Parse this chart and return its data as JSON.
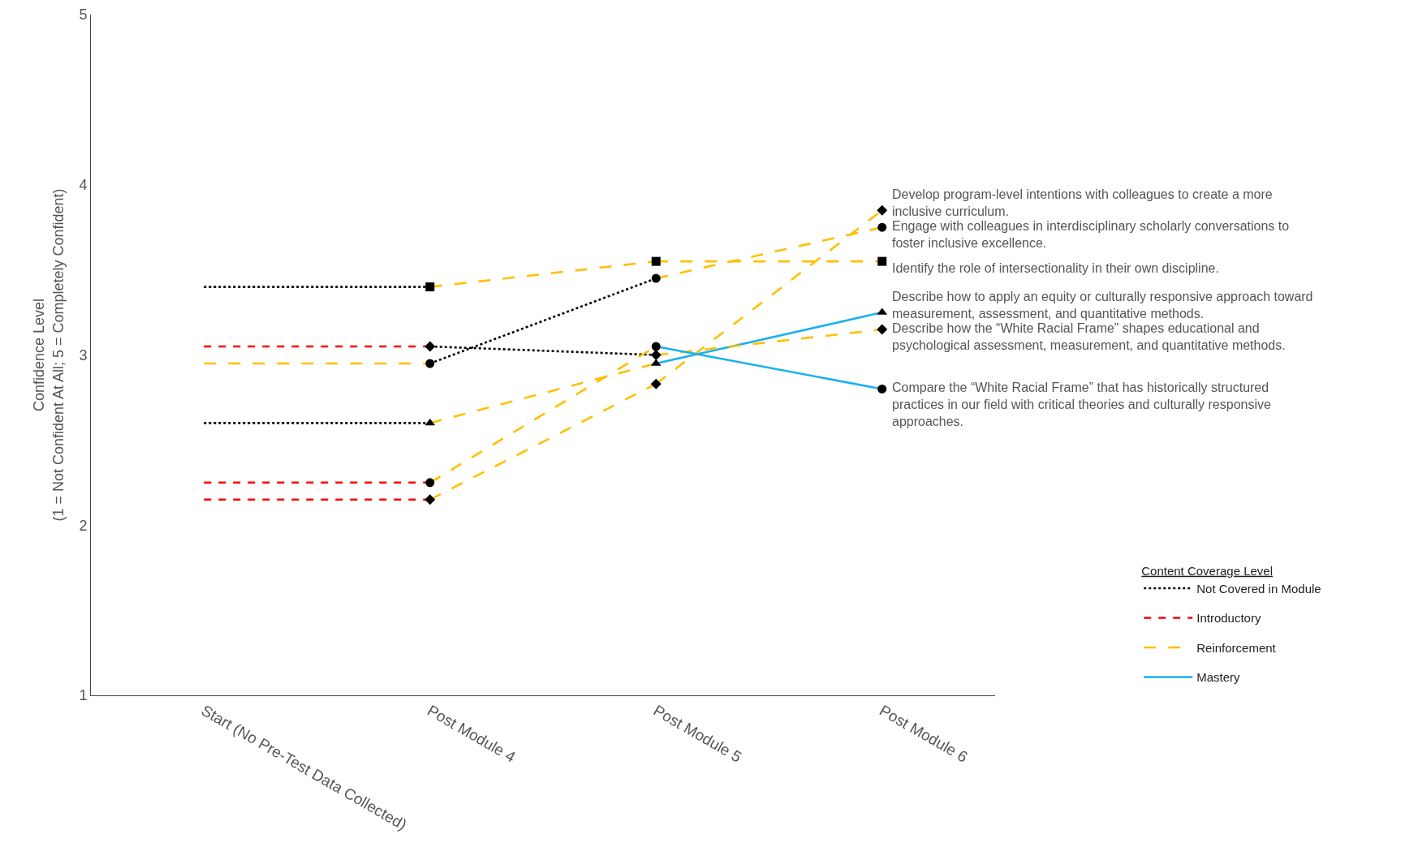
{
  "chart_data": {
    "type": "line",
    "ylabel": "Confidence Level\n(1 = Not Confident At All; 5 = Completely Confident)",
    "legend_title": "Content Coverage Level",
    "legend": "bottom right",
    "grid": false,
    "categories": [
      "Start (No Pre-Test Data Collected)",
      "Post Module 4",
      "Post Module 5",
      "Post Module 6"
    ],
    "ylim": [
      1,
      5
    ],
    "yticks": [
      1,
      2,
      3,
      4,
      5
    ],
    "series": [
      {
        "type": "line",
        "name": "Not Covered in Module",
        "color": "#000000",
        "line_style": "dotted",
        "x": [
          "Start (No Pre-Test Data Collected)",
          "Post Module 4"
        ],
        "values": [
          3.4,
          3.4
        ]
      },
      {
        "type": "line",
        "name": "Introductory",
        "color": "#ff0000",
        "line_style": "dashed",
        "x": [
          "Start (No Pre-Test Data Collected)",
          "Post Module 4"
        ],
        "values": [
          2.15,
          2.15
        ]
      },
      {
        "type": "line",
        "name": "Reinforcement",
        "color": "#ffc000",
        "line_style": "dashed",
        "x": [
          "Post Module 4",
          "Post Module 5"
        ],
        "values": [
          2.15,
          2.83
        ]
      },
      {
        "type": "line",
        "name": "Mastery",
        "color": "#1ab0ef",
        "line_style": "solid",
        "x": [
          "Post Module 5",
          "Post Module 6"
        ],
        "values": [
          2.95,
          3.25
        ]
      },
      {
        "type": "line",
        "color": "#ffc000",
        "line_style": "dashed",
        "x": [
          "Post Module 5",
          "Post Module 6"
        ],
        "values": [
          2.83,
          3.85
        ]
      },
      {
        "type": "line",
        "color": "#ffc000",
        "line_style": "dashed",
        "x": [
          "Start (No Pre-Test Data Collected)",
          "Post Module 4"
        ],
        "values": [
          2.95,
          2.95
        ]
      },
      {
        "type": "line",
        "color": "#000000",
        "line_style": "dotted",
        "x": [
          "Post Module 4",
          "Post Module 5"
        ],
        "values": [
          2.95,
          3.45
        ]
      },
      {
        "type": "line",
        "color": "#ffc000",
        "line_style": "dashed",
        "x": [
          "Post Module 5",
          "Post Module 6"
        ],
        "values": [
          3.45,
          3.75
        ]
      },
      {
        "type": "line",
        "color": "#ffc000",
        "line_style": "dashed",
        "x": [
          "Post Module 4",
          "Post Module 5"
        ],
        "values": [
          3.4,
          3.55
        ]
      },
      {
        "type": "line",
        "color": "#ffc000",
        "line_style": "dashed",
        "x": [
          "Post Module 5",
          "Post Module 6"
        ],
        "values": [
          3.55,
          3.55
        ]
      },
      {
        "type": "line",
        "color": "#000000",
        "line_style": "dotted",
        "x": [
          "Start (No Pre-Test Data Collected)",
          "Post Module 4"
        ],
        "values": [
          2.6,
          2.6
        ]
      },
      {
        "type": "line",
        "color": "#ffc000",
        "line_style": "dashed",
        "x": [
          "Post Module 4",
          "Post Module 5"
        ],
        "values": [
          2.6,
          2.95
        ]
      },
      {
        "type": "line",
        "color": "#ff0000",
        "line_style": "dashed",
        "x": [
          "Start (No Pre-Test Data Collected)",
          "Post Module 4"
        ],
        "values": [
          3.05,
          3.05
        ]
      },
      {
        "type": "line",
        "color": "#000000",
        "line_style": "dotted",
        "x": [
          "Post Module 4",
          "Post Module 5"
        ],
        "values": [
          3.05,
          3.0
        ]
      },
      {
        "type": "line",
        "color": "#ffc000",
        "line_style": "dashed",
        "x": [
          "Post Module 5",
          "Post Module 6"
        ],
        "values": [
          3.0,
          3.15
        ]
      },
      {
        "type": "line",
        "color": "#ff0000",
        "line_style": "dashed",
        "x": [
          "Start (No Pre-Test Data Collected)",
          "Post Module 4"
        ],
        "values": [
          2.25,
          2.25
        ]
      },
      {
        "type": "line",
        "color": "#ffc000",
        "line_style": "dashed",
        "x": [
          "Post Module 4",
          "Post Module 5"
        ],
        "values": [
          2.25,
          3.05
        ]
      },
      {
        "type": "line",
        "color": "#1ab0ef",
        "line_style": "solid",
        "x": [
          "Post Module 5",
          "Post Module 6"
        ],
        "values": [
          3.05,
          2.8
        ]
      },
      {
        "type": "scatter",
        "marker": "diamond",
        "color": "#000000",
        "x": [
          "Post Module 4",
          "Post Module 5",
          "Post Module 6"
        ],
        "values": [
          2.15,
          2.83,
          3.85
        ]
      },
      {
        "type": "scatter",
        "marker": "circle",
        "color": "#000000",
        "x": [
          "Post Module 4",
          "Post Module 5",
          "Post Module 6"
        ],
        "values": [
          2.95,
          3.45,
          3.75
        ]
      },
      {
        "type": "scatter",
        "marker": "square",
        "color": "#000000",
        "x": [
          "Post Module 4",
          "Post Module 5",
          "Post Module 6"
        ],
        "values": [
          3.4,
          3.55,
          3.55
        ]
      },
      {
        "type": "scatter",
        "marker": "triangle",
        "color": "#000000",
        "x": [
          "Post Module 4",
          "Post Module 5",
          "Post Module 6"
        ],
        "values": [
          2.6,
          2.95,
          3.25
        ]
      },
      {
        "type": "scatter",
        "marker": "diamond",
        "color": "#000000",
        "x": [
          "Post Module 4",
          "Post Module 5",
          "Post Module 6"
        ],
        "values": [
          3.05,
          3.0,
          3.15
        ]
      },
      {
        "type": "scatter",
        "marker": "circle",
        "color": "#000000",
        "x": [
          "Post Module 4",
          "Post Module 5",
          "Post Module 6"
        ],
        "values": [
          2.25,
          3.05,
          2.8
        ]
      }
    ],
    "annotations": [
      {
        "text": "Develop program-level intentions with colleagues to create a more inclusive curriculum.",
        "x": "Post Module 6",
        "y": 3.85
      },
      {
        "text": "Engage with colleagues in interdisciplinary scholarly conversations to foster inclusive excellence.",
        "x": "Post Module 6",
        "y": 3.75
      },
      {
        "text": "Identify the role of intersectionality in their own discipline.",
        "x": "Post Module 6",
        "y": 3.55
      },
      {
        "text": "Describe how to apply an equity or culturally responsive approach toward measurement, assessment, and quantitative methods.",
        "x": "Post Module 6",
        "y": 3.25
      },
      {
        "text": "Describe how the “White Racial Frame” shapes educational and psychological assessment, measurement, and quantitative methods.",
        "x": "Post Module 6",
        "y": 3.15
      },
      {
        "text": "Compare the “White Racial Frame” that has historically structured practices in our field with critical theories and culturally responsive approaches.",
        "x": "Post Module 6",
        "y": 2.8
      }
    ]
  }
}
